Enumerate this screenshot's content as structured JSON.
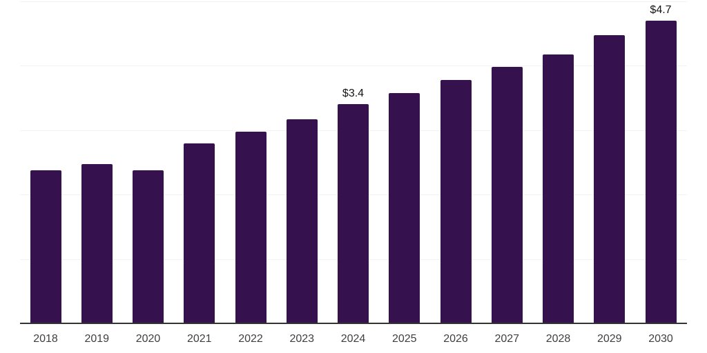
{
  "chart_data": {
    "type": "bar",
    "title": "",
    "xlabel": "",
    "ylabel": "",
    "categories": [
      "2018",
      "2019",
      "2020",
      "2021",
      "2022",
      "2023",
      "2024",
      "2025",
      "2026",
      "2027",
      "2028",
      "2029",
      "2030"
    ],
    "values": [
      2.38,
      2.47,
      2.38,
      2.79,
      2.98,
      3.17,
      3.4,
      3.58,
      3.78,
      3.98,
      4.18,
      4.48,
      4.7
    ],
    "data_labels": [
      "",
      "",
      "",
      "",
      "",
      "",
      "$3.4",
      "",
      "",
      "",
      "",
      "",
      "$4.7"
    ],
    "ylim": [
      0,
      5
    ],
    "gridline_values": [
      1,
      2,
      3,
      4,
      5
    ],
    "grid": true,
    "legend": false,
    "colors": {
      "bar": "#35114d",
      "gridline": "#f2f2f2",
      "axis_line": "#333333",
      "tick_label": "#3f3f3f",
      "data_label": "#141414",
      "background": "#ffffff"
    }
  }
}
